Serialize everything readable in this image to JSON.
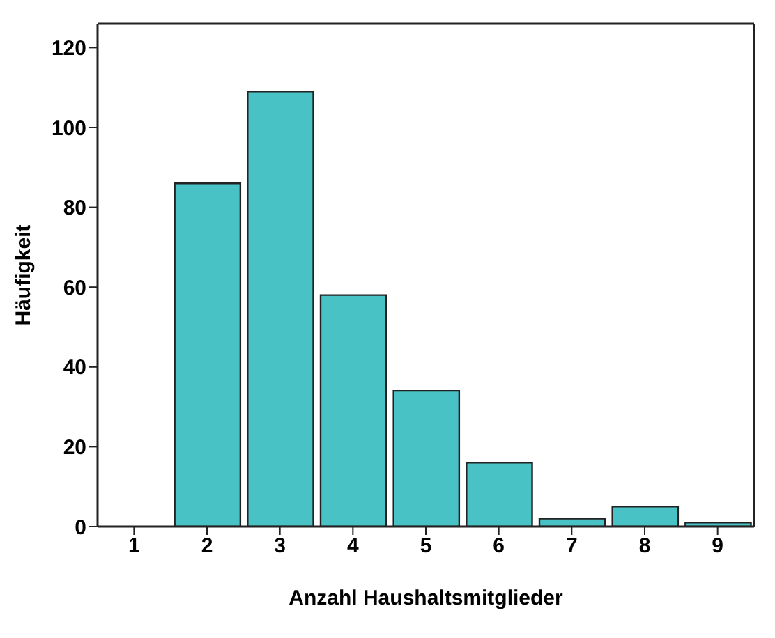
{
  "chart_data": {
    "type": "histogram",
    "xlabel": "Anzahl Haushaltsmitglieder",
    "ylabel": "Häufigkeit",
    "bins": [
      0.5,
      1.5,
      2.5,
      3.5,
      4.5,
      5.5,
      6.5,
      7.5,
      8.5,
      9.5
    ],
    "values": [
      0,
      86,
      109,
      58,
      34,
      16,
      2,
      5,
      1
    ],
    "color": "#48c2c5",
    "xlim": [
      0.5,
      9.5
    ],
    "xticks": [
      1,
      2,
      3,
      4,
      5,
      6,
      7,
      8,
      9
    ],
    "ylim": [
      0,
      126
    ],
    "yticks": [
      0,
      20,
      40,
      60,
      80,
      100,
      120
    ],
    "grid": false,
    "legend": false
  }
}
